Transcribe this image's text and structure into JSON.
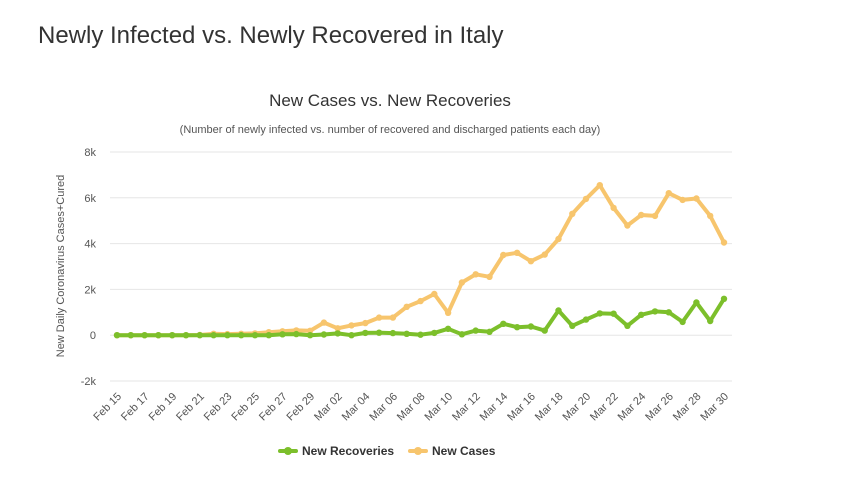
{
  "page": {
    "heading": "Newly Infected vs. Newly Recovered in Italy"
  },
  "chart_data": {
    "type": "line",
    "title": "New Cases vs. New Recoveries",
    "subtitle": "(Number of newly infected vs. number of recovered and discharged patients each day)",
    "ylabel": "New Daily Coronavirus Cases+Cured",
    "xlabel": "",
    "ylim": [
      -2000,
      8000
    ],
    "yticks": [
      -2000,
      0,
      2000,
      4000,
      6000,
      8000
    ],
    "ytick_labels": [
      "-2k",
      "0",
      "2k",
      "4k",
      "6k",
      "8k"
    ],
    "grid": true,
    "legend_position": "bottom-center",
    "x": [
      "Feb 15",
      "Feb 16",
      "Feb 17",
      "Feb 18",
      "Feb 19",
      "Feb 20",
      "Feb 21",
      "Feb 22",
      "Feb 23",
      "Feb 24",
      "Feb 25",
      "Feb 26",
      "Feb 27",
      "Feb 28",
      "Feb 29",
      "Mar 01",
      "Mar 02",
      "Mar 03",
      "Mar 04",
      "Mar 05",
      "Mar 06",
      "Mar 07",
      "Mar 08",
      "Mar 09",
      "Mar 10",
      "Mar 11",
      "Mar 12",
      "Mar 13",
      "Mar 14",
      "Mar 15",
      "Mar 16",
      "Mar 17",
      "Mar 18",
      "Mar 19",
      "Mar 20",
      "Mar 21",
      "Mar 22",
      "Mar 23",
      "Mar 24",
      "Mar 25",
      "Mar 26",
      "Mar 27",
      "Mar 28",
      "Mar 29",
      "Mar 30"
    ],
    "x_tick_labels": [
      "Feb 15",
      "Feb 17",
      "Feb 19",
      "Feb 21",
      "Feb 23",
      "Feb 25",
      "Feb 27",
      "Feb 29",
      "Mar 02",
      "Mar 04",
      "Mar 06",
      "Mar 08",
      "Mar 10",
      "Mar 12",
      "Mar 14",
      "Mar 16",
      "Mar 18",
      "Mar 20",
      "Mar 22",
      "Mar 24",
      "Mar 26",
      "Mar 28",
      "Mar 30"
    ],
    "series": [
      {
        "name": "New Recoveries",
        "color": "#7cbf2b",
        "values": [
          0,
          0,
          0,
          0,
          0,
          0,
          0,
          0,
          0,
          0,
          0,
          0,
          40,
          50,
          0,
          30,
          80,
          0,
          100,
          110,
          90,
          60,
          20,
          100,
          280,
          40,
          200,
          150,
          500,
          350,
          380,
          200,
          1080,
          410,
          680,
          950,
          940,
          410,
          890,
          1040,
          1000,
          580,
          1430,
          620,
          1590
        ]
      },
      {
        "name": "New Cases",
        "color": "#f7c56d",
        "values": [
          0,
          0,
          0,
          0,
          0,
          0,
          10,
          60,
          50,
          60,
          80,
          130,
          170,
          210,
          190,
          550,
          300,
          430,
          530,
          770,
          770,
          1240,
          1490,
          1800,
          980,
          2300,
          2660,
          2550,
          3500,
          3600,
          3230,
          3520,
          4200,
          5300,
          5950,
          6550,
          5560,
          4790,
          5250,
          5210,
          6200,
          5910,
          5970,
          5210,
          4050
        ]
      }
    ]
  }
}
